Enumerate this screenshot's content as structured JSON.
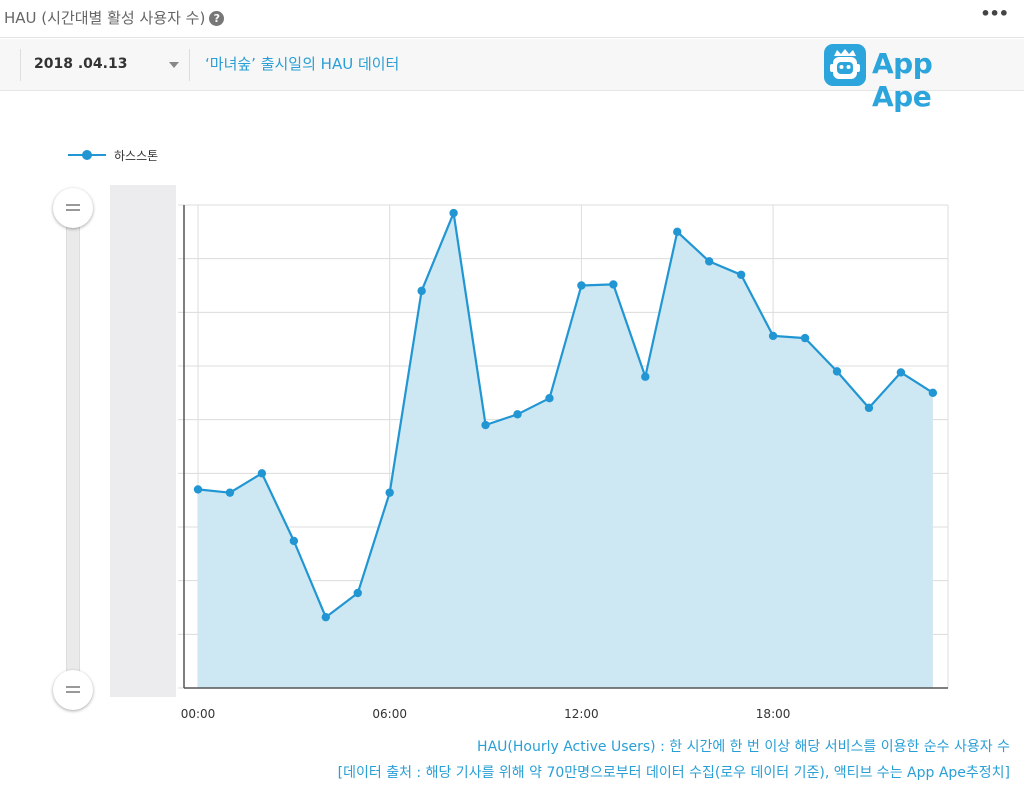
{
  "header": {
    "title": "HAU (시간대별 활성 사용자 수)",
    "help_icon": "?",
    "more_icon": "•••"
  },
  "toolbar": {
    "date": "2018 .04.13",
    "subtitle": "‘마녀숲’ 출시일의 HAU 데이터"
  },
  "logo": {
    "text": "App Ape"
  },
  "chart_data": {
    "type": "area",
    "title": "",
    "xlabel": "",
    "ylabel": "",
    "x": [
      0,
      1,
      2,
      3,
      4,
      5,
      6,
      7,
      8,
      9,
      10,
      11,
      12,
      13,
      14,
      15,
      16,
      17,
      18,
      19,
      20,
      21,
      22,
      23
    ],
    "x_ticks": [
      {
        "x": 0,
        "label": "00:00"
      },
      {
        "x": 6,
        "label": "06:00"
      },
      {
        "x": 12,
        "label": "12:00"
      },
      {
        "x": 18,
        "label": "18:00"
      }
    ],
    "ylim": [
      0,
      9
    ],
    "grid": true,
    "legend": "top-left",
    "series": [
      {
        "name": "하스스톤",
        "color": "#2196d3",
        "fill": "#cde8f2",
        "values": [
          3.7,
          3.64,
          4.0,
          2.74,
          1.32,
          1.77,
          3.64,
          7.4,
          8.85,
          4.9,
          5.1,
          5.4,
          7.5,
          7.52,
          5.8,
          8.5,
          7.95,
          7.7,
          6.56,
          6.52,
          5.9,
          5.22,
          5.88,
          5.5
        ]
      }
    ]
  },
  "notes": {
    "line1": "HAU(Hourly Active Users) : 한 시간에 한 번 이상 해당 서비스를 이용한 순수 사용자 수",
    "line2": "[데이터 출처 : 해당 기사를 위해 약 70만명으로부터 데이터 수집(로우 데이터 기준), 액티브 수는 App Ape추정치]"
  }
}
